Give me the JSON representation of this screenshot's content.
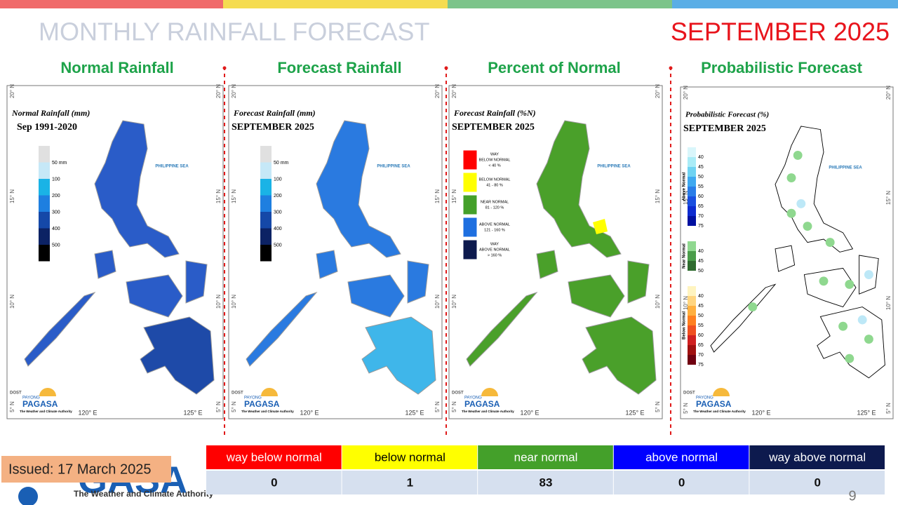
{
  "header": {
    "title": "MONTHLY RAINFALL FORECAST",
    "month": "SEPTEMBER 2025"
  },
  "panels": [
    {
      "heading": "Normal Rainfall",
      "map_title": "Normal Rainfall (mm)",
      "map_subtitle": "Sep 1991-2020",
      "legend": [
        "50 mm",
        "100",
        "200",
        "300",
        "400",
        "500"
      ]
    },
    {
      "heading": "Forecast Rainfall",
      "map_title": "Forecast Rainfall (mm)",
      "map_subtitle": "SEPTEMBER 2025",
      "legend": [
        "50 mm",
        "100",
        "200",
        "300",
        "400",
        "500"
      ]
    },
    {
      "heading": "Percent of Normal",
      "map_title": "Forecast Rainfall (%N)",
      "map_subtitle": "SEPTEMBER 2025",
      "legend": [
        [
          "WAY",
          "BELOW NORMAL",
          "< 40 %"
        ],
        [
          "BELOW NORMAL",
          "41 - 80 %"
        ],
        [
          "NEAR NORMAL",
          "81 - 120 %"
        ],
        [
          "ABOVE NORMAL",
          "121 - 160 %"
        ],
        [
          "WAY",
          "ABOVE NORMAL",
          "> 160 %"
        ]
      ]
    },
    {
      "heading": "Probabilistic Forecast",
      "map_title": "Probabilistic Forecast (%)",
      "map_subtitle": "SEPTEMBER 2025",
      "legend": [
        {
          "name": "Above Normal",
          "levels": [
            "40",
            "45",
            "50",
            "55",
            "60",
            "65",
            "70",
            "75"
          ]
        },
        {
          "name": "Near Normal",
          "levels": [
            "40",
            "45",
            "50"
          ]
        },
        {
          "name": "Below Normal",
          "levels": [
            "40",
            "45",
            "50",
            "55",
            "60",
            "65",
            "70",
            "75"
          ]
        }
      ]
    }
  ],
  "map_labels": {
    "sea": "PHILIPPINE SEA",
    "lat": [
      "20° N",
      "15° N",
      "10° N",
      "5° N"
    ],
    "lon": [
      "120° E",
      "125° E"
    ]
  },
  "logo": {
    "brand": "DOST",
    "sub": "PAYONG",
    "name": "PAGASA",
    "tagline": "The Weather and Climate Authority"
  },
  "issued": "Issued: 17 March 2025",
  "table": {
    "header": [
      "way below normal",
      "below normal",
      "near normal",
      "above normal",
      "way above normal"
    ],
    "rows": [
      [
        "0",
        "1",
        "83",
        "0",
        "0"
      ]
    ]
  },
  "page_number": "9"
}
